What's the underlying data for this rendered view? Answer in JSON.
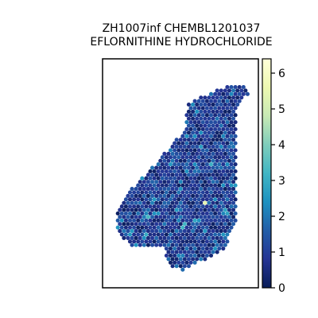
{
  "chart_data": {
    "type": "scatter",
    "subtype": "spatial-hexbin-spot-map",
    "title_lines": [
      "ZH1007inf CHEMBL1201037",
      "EFLORNITHINE HYDROCHLORIDE"
    ],
    "xlabel": "",
    "ylabel": "",
    "axes_ticks_visible": false,
    "grid": false,
    "colormap": "YlGnBu_r",
    "colormap_stops": [
      "#081d58",
      "#253494",
      "#225ea8",
      "#1d91c0",
      "#41b6c4",
      "#7fcdbb",
      "#c7e9b4",
      "#edf8b1",
      "#ffffd9"
    ],
    "colorbar": {
      "vmin": 0,
      "vmax": 6.4,
      "ticks": [
        0,
        1,
        2,
        3,
        4,
        5,
        6
      ],
      "tick_labels": [
        "0",
        "1",
        "2",
        "3",
        "4",
        "5",
        "6"
      ]
    },
    "tissue_regions": [
      {
        "name": "left-strip",
        "outline_norm": [
          [
            0.35,
            0.44
          ],
          [
            0.5,
            0.32
          ],
          [
            0.64,
            0.23
          ],
          [
            0.64,
            0.33
          ],
          [
            0.55,
            0.55
          ],
          [
            0.5,
            0.7
          ],
          [
            0.45,
            0.82
          ],
          [
            0.38,
            0.86
          ],
          [
            0.15,
            0.86
          ],
          [
            0.05,
            0.78
          ],
          [
            0.05,
            0.68
          ],
          [
            0.12,
            0.6
          ],
          [
            0.2,
            0.55
          ]
        ]
      },
      {
        "name": "right-block",
        "outline_norm": [
          [
            0.55,
            0.18
          ],
          [
            0.75,
            0.11
          ],
          [
            0.85,
            0.09
          ],
          [
            0.96,
            0.1
          ],
          [
            0.97,
            0.13
          ],
          [
            0.91,
            0.18
          ],
          [
            0.88,
            0.24
          ],
          [
            0.88,
            0.55
          ],
          [
            0.89,
            0.72
          ],
          [
            0.8,
            0.87
          ],
          [
            0.72,
            0.9
          ],
          [
            0.5,
            0.97
          ],
          [
            0.42,
            0.95
          ],
          [
            0.37,
            0.86
          ],
          [
            0.45,
            0.82
          ],
          [
            0.5,
            0.7
          ],
          [
            0.52,
            0.45
          ],
          [
            0.52,
            0.3
          ]
        ]
      }
    ],
    "value_distribution_note_values": {
      "typical_min": 0,
      "typical_max": 2,
      "max_observed": 5.5
    },
    "highlight_spots": [
      {
        "x_norm": 0.67,
        "y_norm": 0.65,
        "value": 5.5
      },
      {
        "x_norm": 0.28,
        "y_norm": 0.72,
        "value": 3.3
      },
      {
        "x_norm": 0.25,
        "y_norm": 0.8,
        "value": 3.0
      },
      {
        "x_norm": 0.52,
        "y_norm": 0.76,
        "value": 3.2
      },
      {
        "x_norm": 0.7,
        "y_norm": 0.47,
        "value": 3.1
      },
      {
        "x_norm": 0.82,
        "y_norm": 0.69,
        "value": 2.8
      },
      {
        "x_norm": 0.3,
        "y_norm": 0.91,
        "value": 3.4
      },
      {
        "x_norm": 0.46,
        "y_norm": 0.68,
        "value": 2.6
      },
      {
        "x_norm": 0.64,
        "y_norm": 0.38,
        "value": 2.7
      },
      {
        "x_norm": 0.22,
        "y_norm": 0.53,
        "value": 2.5
      },
      {
        "x_norm": 0.87,
        "y_norm": 0.87,
        "value": 3.5
      },
      {
        "x_norm": 0.59,
        "y_norm": 0.74,
        "value": 2.9
      },
      {
        "x_norm": 0.79,
        "y_norm": 0.56,
        "value": 2.4
      },
      {
        "x_norm": 0.15,
        "y_norm": 0.79,
        "value": 2.6
      }
    ]
  }
}
